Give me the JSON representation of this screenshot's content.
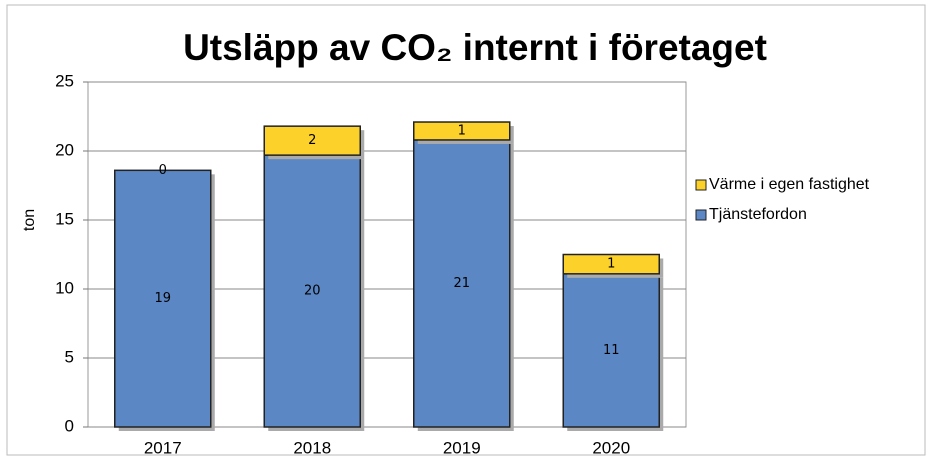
{
  "chart_data": {
    "type": "stacked_bar",
    "title": "Utsläpp av CO₂ internt i företaget",
    "y_label": "ton",
    "categories": [
      "2017",
      "2018",
      "2019",
      "2020"
    ],
    "series": [
      {
        "name": "Tjänstefordon",
        "color": "#5b87c5",
        "values": [
          18.6,
          19.7,
          20.8,
          11.1
        ],
        "value_labels": [
          "19",
          "20",
          "21",
          "11"
        ]
      },
      {
        "name": "Värme i egen fastighet",
        "color": "#fcd12a",
        "values": [
          0,
          2.1,
          1.3,
          1.4
        ],
        "value_labels": [
          "0",
          "2",
          "1",
          "1"
        ]
      }
    ],
    "ylim": [
      0,
      25
    ],
    "yticks": [
      0,
      5,
      10,
      15,
      20,
      25
    ],
    "grid": true,
    "legend": "right"
  }
}
